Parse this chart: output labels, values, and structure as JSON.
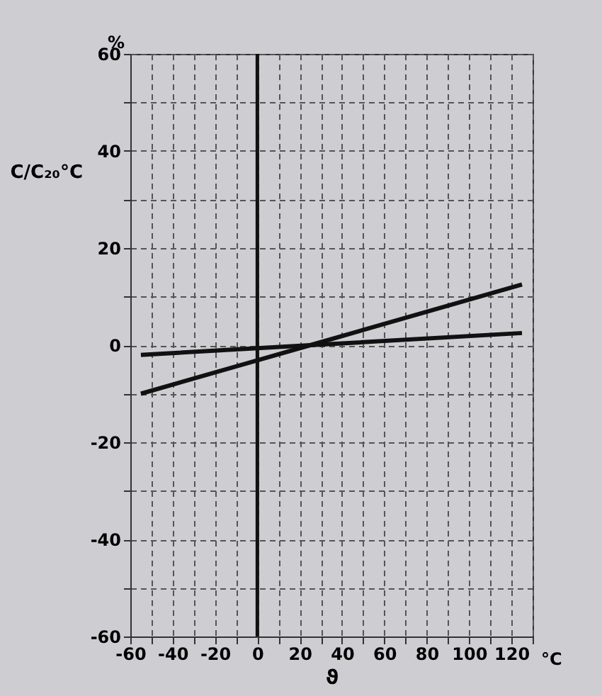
{
  "chart_data": {
    "type": "line",
    "ylabel": "C/C₂₀°C",
    "xlabel": "ϑ",
    "annotations": [
      "%",
      "°C"
    ],
    "xlim": [
      -60,
      130
    ],
    "ylim": [
      -60,
      60
    ],
    "xticks": [
      -60,
      {
        "value": -50,
        "label": null
      },
      -40,
      {
        "value": -30,
        "label": null
      },
      -20,
      {
        "value": -10,
        "label": null
      },
      0,
      {
        "value": 10,
        "label": null
      },
      20,
      {
        "value": 30,
        "label": null
      },
      40,
      {
        "value": 50,
        "label": null
      },
      60,
      {
        "value": 70,
        "label": null
      },
      80,
      {
        "value": 90,
        "label": null
      },
      100,
      {
        "value": 110,
        "label": null
      },
      120,
      {
        "value": 130,
        "label": null
      }
    ],
    "yticks": [
      -60,
      {
        "value": -50,
        "label": null
      },
      -40,
      {
        "value": -30,
        "label": null
      },
      -20,
      {
        "value": -10,
        "label": null
      },
      0,
      {
        "value": 10,
        "label": null
      },
      20,
      {
        "value": 30,
        "label": null
      },
      40,
      {
        "value": 50,
        "label": null
      },
      60
    ],
    "grid": true,
    "ref_lines": [
      {
        "axis": "x",
        "value": 0,
        "color": "#111111"
      }
    ],
    "series": [
      {
        "color": "#111111",
        "x": [
          -55,
          25,
          125
        ],
        "values": [
          -10,
          0,
          12.5
        ]
      },
      {
        "color": "#111111",
        "x": [
          -55,
          25,
          125
        ],
        "values": [
          -2,
          0,
          2.5
        ]
      }
    ]
  }
}
